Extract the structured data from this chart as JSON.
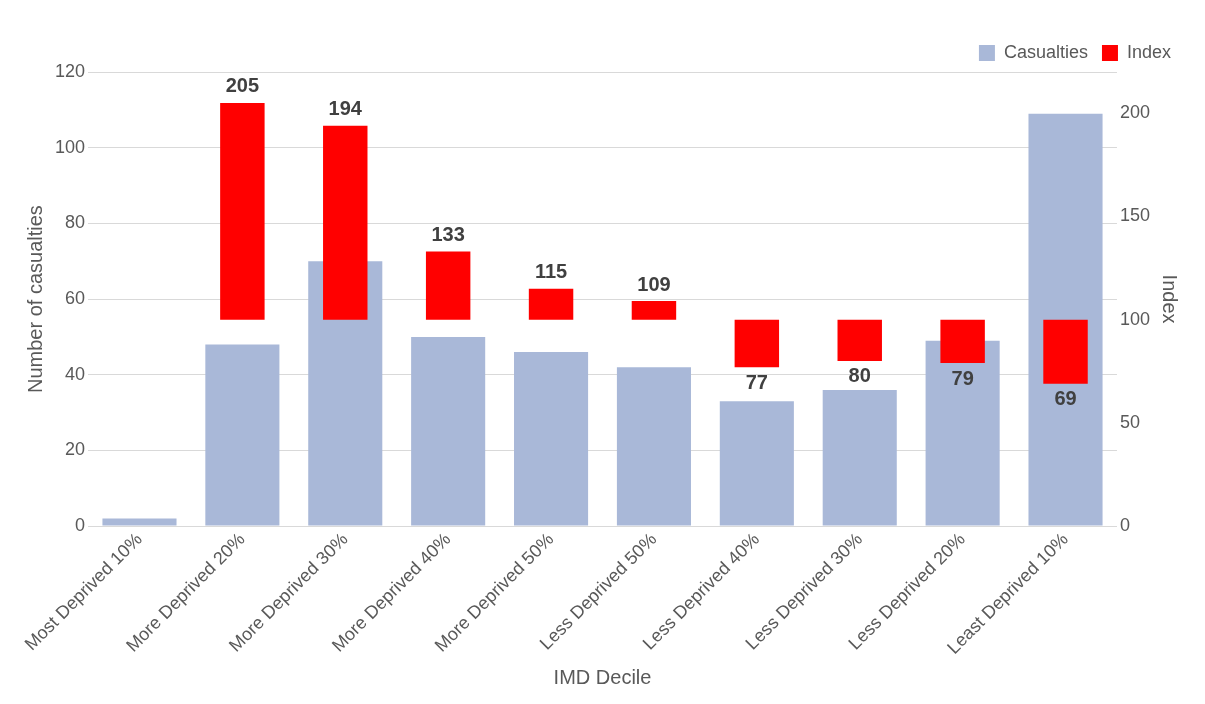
{
  "chart_data": {
    "type": "bar",
    "xlabel": "IMD Decile",
    "ylabel": "Number of casualties",
    "y2label": "Index",
    "categories": [
      "Most Deprived 10%",
      "More Deprived 20%",
      "More Deprived 30%",
      "More Deprived 40%",
      "More Deprived 50%",
      "Less Deprived 50%",
      "Less Deprived 40%",
      "Less Deprived 30%",
      "Less Deprived 20%",
      "Least Deprived 10%"
    ],
    "series": [
      {
        "name": "Casualties",
        "color": "#a9b8d8",
        "values": [
          2,
          48,
          70,
          50,
          46,
          42,
          33,
          36,
          49,
          109
        ]
      },
      {
        "name": "Index",
        "color": "#ff0000",
        "axis": "y2",
        "base": [
          null,
          100,
          100,
          100,
          100,
          100,
          100,
          100,
          100,
          100
        ],
        "values": [
          null,
          105,
          94,
          33,
          15,
          9,
          -23,
          -20,
          -21,
          -31
        ],
        "value_labels": [
          null,
          "205",
          "194",
          "133",
          "115",
          "109",
          "77",
          "80",
          "79",
          "69"
        ]
      }
    ],
    "ylim": [
      0,
      120
    ],
    "yticks": [
      0,
      20,
      40,
      60,
      80,
      100,
      120
    ],
    "y2lim": [
      0,
      220
    ],
    "y2ticks": [
      0,
      50,
      100,
      150,
      200
    ],
    "grid": "y",
    "legend": "top right"
  }
}
